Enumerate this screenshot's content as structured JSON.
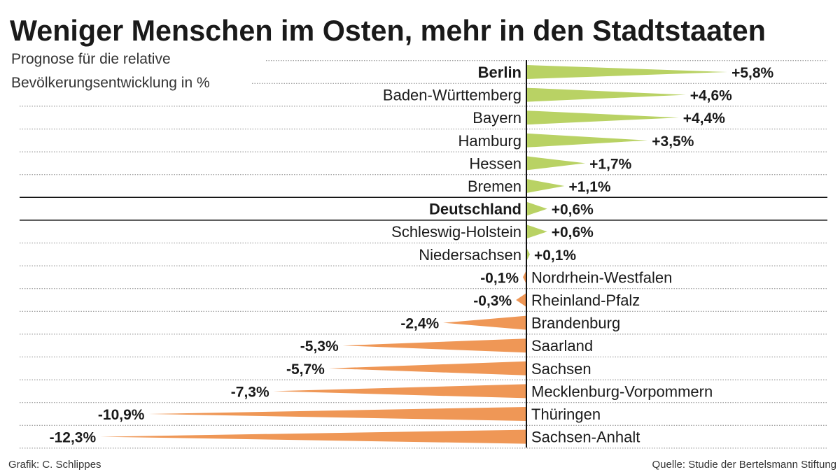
{
  "chart_data": {
    "type": "bar",
    "orientation": "horizontal",
    "title": "Weniger Menschen im Osten, mehr in den Stadtstaaten",
    "subtitle_lines": [
      "Prognose für die relative",
      "Bevölkerungsentwicklung in %"
    ],
    "categories": [
      "Berlin",
      "Baden-Württemberg",
      "Bayern",
      "Hamburg",
      "Hessen",
      "Bremen",
      "Deutschland",
      "Schleswig-Holstein",
      "Niedersachsen",
      "Nordrhein-Westfalen",
      "Rheinland-Pfalz",
      "Brandenburg",
      "Saarland",
      "Sachsen",
      "Mecklenburg-Vorpommern",
      "Thüringen",
      "Sachsen-Anhalt"
    ],
    "values": [
      5.8,
      4.6,
      4.4,
      3.5,
      1.7,
      1.1,
      0.6,
      0.6,
      0.1,
      -0.1,
      -0.3,
      -2.4,
      -5.3,
      -5.7,
      -7.3,
      -10.9,
      -12.3
    ],
    "value_labels": [
      "+5,8%",
      "+4,6%",
      "+4,4%",
      "+3,5%",
      "+1,7%",
      "+1,1%",
      "+0,6%",
      "+0,6%",
      "+0,1%",
      "-0,1%",
      "-0,3%",
      "-2,4%",
      "-5,3%",
      "-5,7%",
      "-7,3%",
      "-10,9%",
      "-12,3%"
    ],
    "bold_categories": [
      "Berlin",
      "Deutschland"
    ],
    "highlight_row": "Deutschland",
    "xlim": [
      -12.3,
      5.8
    ],
    "grid": false,
    "colors": {
      "positive": "#b9d264",
      "negative": "#ef9756",
      "text": "#1a1a1a"
    }
  },
  "footer": {
    "credit": "Grafik: C. Schlippes",
    "source": "Quelle: Studie der Bertelsmann Stiftung"
  }
}
